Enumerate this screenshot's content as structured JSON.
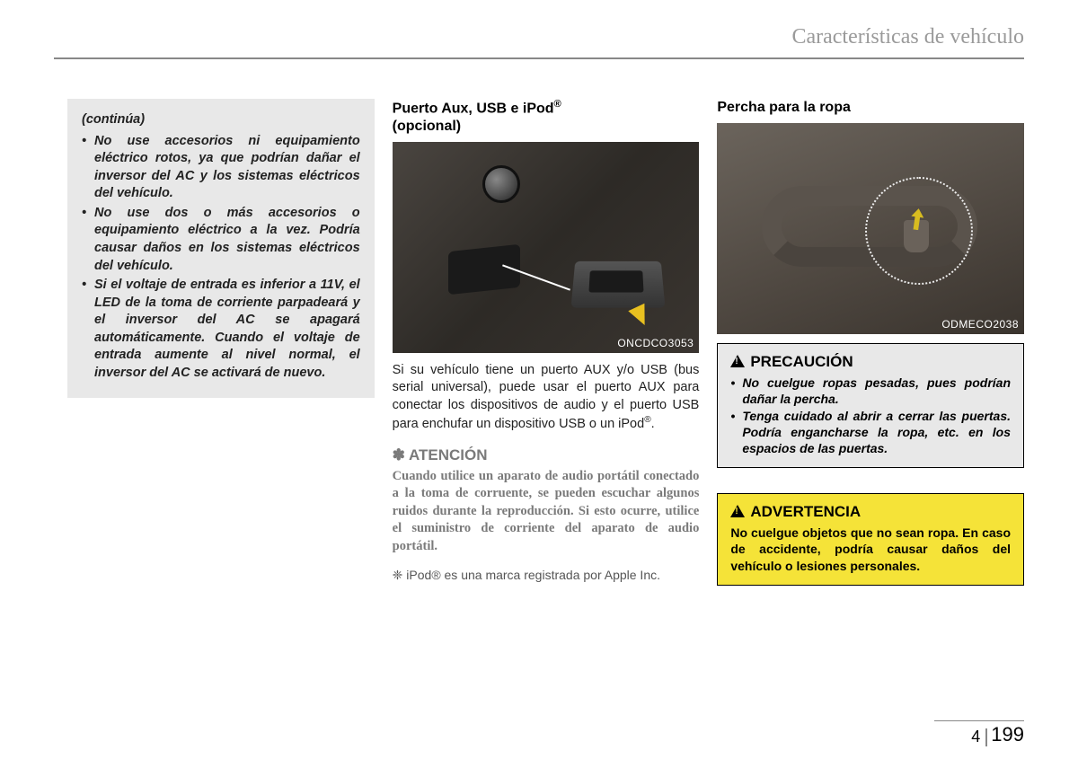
{
  "header": {
    "title": "Características de vehículo"
  },
  "footer": {
    "section": "4",
    "page": "199"
  },
  "col1": {
    "continua": "(continúa)",
    "bullets": [
      "No use accesorios ni equipamiento eléctrico rotos, ya que podrían dañar el inversor del AC y los sistemas eléctricos del vehículo.",
      "No use dos o más accesorios o equipamiento eléctrico a la vez. Podría causar daños en los sistemas eléctricos del vehículo.",
      "Si el voltaje de entrada es inferior a 11V, el LED de la toma de corriente parpadeará y el inversor del AC se apagará automáticamente. Cuando el voltaje de entrada aumente al nivel normal, el inversor del AC se activará de nuevo."
    ]
  },
  "col2": {
    "title_line1": "Puerto Aux, USB e iPod",
    "title_reg": "®",
    "title_line2": "(opcional)",
    "fig_label": "ONCDCO3053",
    "body": "Si su vehículo tiene un puerto AUX y/o USB (bus serial universal), puede usar el puerto AUX para conectar los dispositivos de audio y el puerto USB para enchufar un dispositivo USB o un iPod",
    "body_reg": "®",
    "atencion_mark": "✽",
    "atencion_title": "ATENCIÓN",
    "atencion_body": "Cuando utilice un aparato de audio portátil conectado a la toma de corruente, se pueden escuchar algunos ruidos durante la reproducción.  Si esto ocurre, utilice el suministro de corriente del aparato de audio portátil.",
    "footnote_mark": "❈",
    "footnote": "iPod® es una marca registrada por Apple Inc."
  },
  "col3": {
    "title": "Percha para la ropa",
    "fig_label": "ODMECO2038",
    "precaucion": {
      "title": "PRECAUCIÓN",
      "bullets": [
        "No cuelgue ropas pesadas, pues podrían dañar la percha.",
        "Tenga cuidado al abrir a cerrar las puertas. Podría engancharse la ropa, etc. en los espacios de las puertas."
      ]
    },
    "advertencia": {
      "title": "ADVERTENCIA",
      "body": "No cuelgue objetos que no sean ropa. En caso de accidente, podría causar daños del vehículo o lesiones personales."
    }
  },
  "colors": {
    "header_text": "#9a9a9a",
    "rule": "#888888",
    "gray_box_bg": "#e8e8e8",
    "atencion_text": "#7a7a7a",
    "warning_bg": "#f5e338",
    "fig_bg_dark": "#2d2a26",
    "arrow": "#e8c020"
  }
}
